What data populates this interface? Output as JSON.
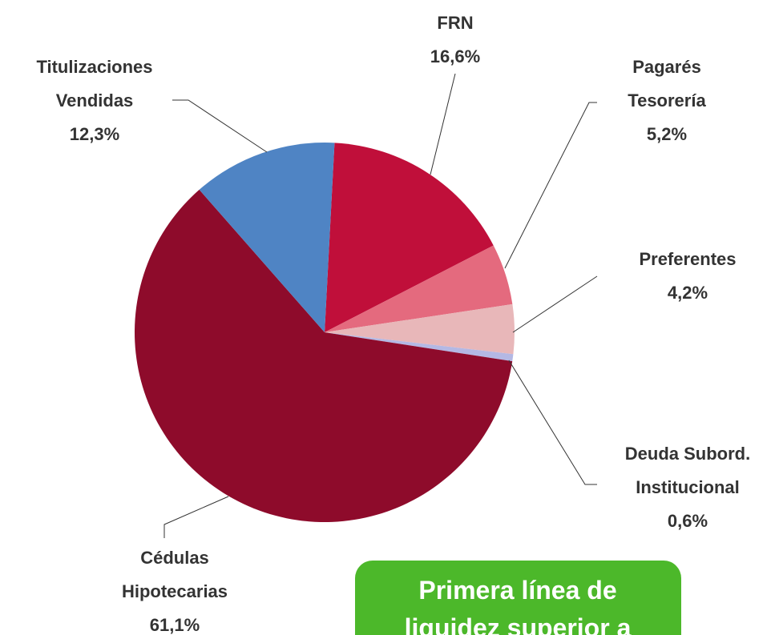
{
  "chart_data": {
    "type": "pie",
    "categories": [
      "FRN",
      "Pagarés\nTesorería",
      "Preferentes",
      "Deuda Subord.\nInstitucional",
      "Cédulas\nHipotecarias",
      "Titulizaciones\nVendidas"
    ],
    "values": [
      16.6,
      5.2,
      4.2,
      0.6,
      61.1,
      12.3
    ],
    "value_labels": [
      "16,6%",
      "5,2%",
      "4,2%",
      "0,6%",
      "61,1%",
      "12,3%"
    ],
    "colors": [
      "#c00f3a",
      "#e46a7e",
      "#e8b7b9",
      "#b4b8e4",
      "#8e0b2b",
      "#4f84c4"
    ],
    "annotation": "Primera línea de\nliquidez superior a"
  }
}
